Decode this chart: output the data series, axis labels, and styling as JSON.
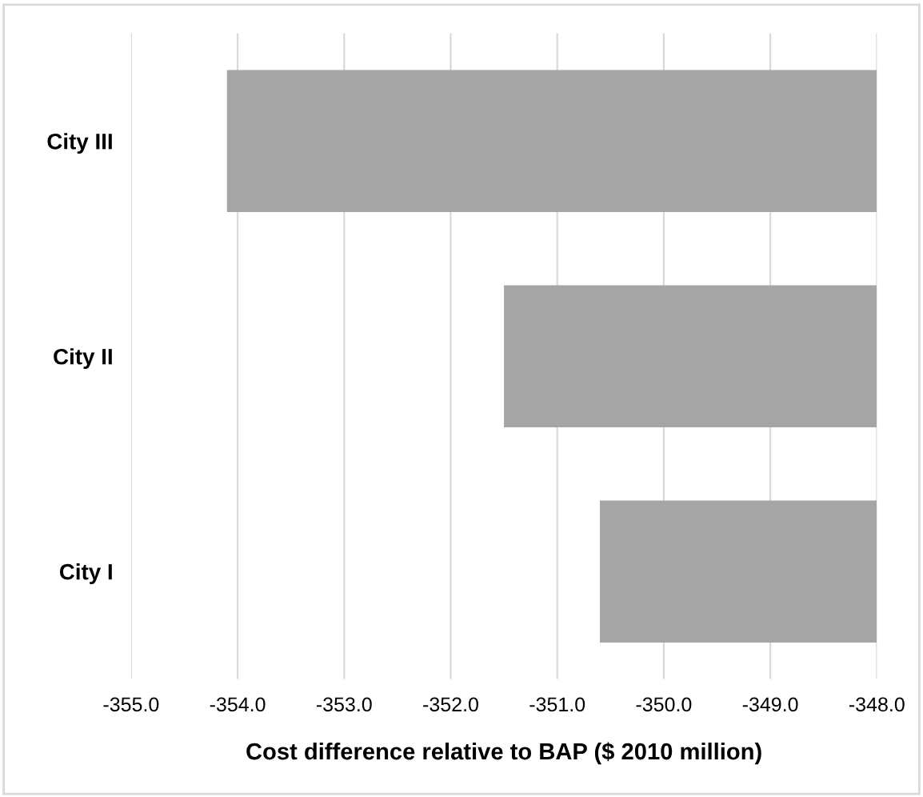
{
  "chart_data": {
    "type": "bar",
    "orientation": "horizontal",
    "xlabel": "Cost difference relative to BAP ($ 2010 million)",
    "categories": [
      "City III",
      "City II",
      "City I"
    ],
    "base": [
      -348.0,
      -348.0,
      -348.0
    ],
    "values": [
      -6.1,
      -3.5,
      -2.6
    ],
    "color": "#a5a5a5",
    "xlim": [
      -355.0,
      -348.0
    ],
    "xticks": [
      {
        "value": -355,
        "label": "-355.0"
      },
      {
        "value": -354,
        "label": "-354.0"
      },
      {
        "value": -353,
        "label": "-353.0"
      },
      {
        "value": -352,
        "label": "-352.0"
      },
      {
        "value": -351,
        "label": "-351.0"
      },
      {
        "value": -350,
        "label": "-350.0"
      },
      {
        "value": -349,
        "label": "-349.0"
      },
      {
        "value": -348,
        "label": "-348.0"
      }
    ],
    "grid": "x"
  }
}
